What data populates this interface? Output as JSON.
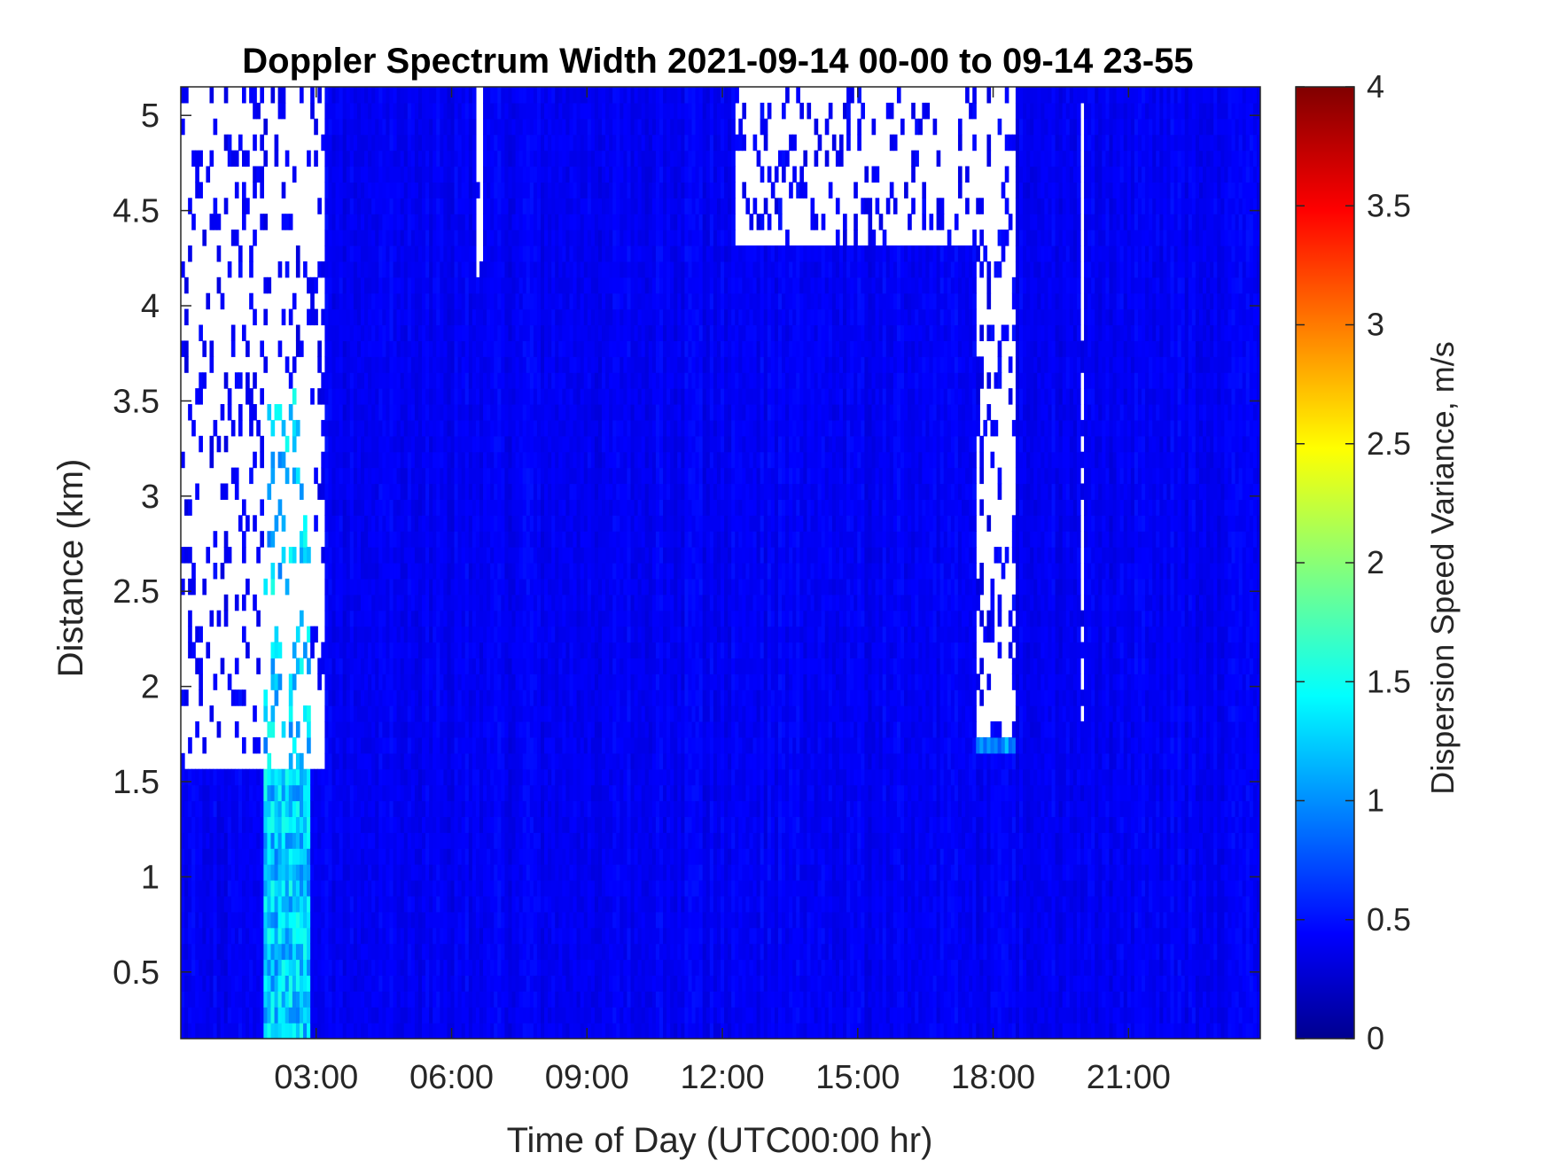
{
  "chart_data": {
    "type": "heatmap",
    "title": "Doppler Spectrum Width 2021-09-14 00-00 to 09-14 23-55",
    "xlabel": "Time of Day (UTC00:00 hr)",
    "ylabel": "Distance (km)",
    "xlim_hours": [
      0.0,
      23.92
    ],
    "ylim_km": [
      0.15,
      5.15
    ],
    "x_ticks": [
      {
        "hour": 3,
        "label": "03:00"
      },
      {
        "hour": 6,
        "label": "06:00"
      },
      {
        "hour": 9,
        "label": "09:00"
      },
      {
        "hour": 12,
        "label": "12:00"
      },
      {
        "hour": 15,
        "label": "15:00"
      },
      {
        "hour": 18,
        "label": "18:00"
      },
      {
        "hour": 21,
        "label": "21:00"
      }
    ],
    "y_ticks": [
      {
        "km": 0.5,
        "label": "0.5"
      },
      {
        "km": 1,
        "label": "1"
      },
      {
        "km": 1.5,
        "label": "1.5"
      },
      {
        "km": 2,
        "label": "2"
      },
      {
        "km": 2.5,
        "label": "2.5"
      },
      {
        "km": 3,
        "label": "3"
      },
      {
        "km": 3.5,
        "label": "3.5"
      },
      {
        "km": 4,
        "label": "4"
      },
      {
        "km": 4.5,
        "label": "4.5"
      },
      {
        "km": 5,
        "label": "5"
      }
    ],
    "colorbar": {
      "label": "Dispersion Speed Variance, m/s",
      "colormap": "jet",
      "range": [
        0,
        4
      ],
      "ticks": [
        {
          "value": 0,
          "label": "0"
        },
        {
          "value": 0.5,
          "label": "0.5"
        },
        {
          "value": 1,
          "label": "1"
        },
        {
          "value": 1.5,
          "label": "1.5"
        },
        {
          "value": 2,
          "label": "2"
        },
        {
          "value": 2.5,
          "label": "2.5"
        },
        {
          "value": 3,
          "label": "3"
        },
        {
          "value": 3.5,
          "label": "3.5"
        },
        {
          "value": 4,
          "label": "4"
        }
      ],
      "colormap_stops": [
        "#00008f",
        "#0000ff",
        "#00ffff",
        "#ffff00",
        "#ff0000",
        "#800000"
      ]
    },
    "background_value_m_s": 0.4,
    "regions": [
      {
        "name": "early elevated variance column",
        "hours": [
          1.8,
          2.9
        ],
        "km": [
          0.15,
          3.6
        ],
        "value_m_s": 1.3
      },
      {
        "name": "no-data cloud region early",
        "hours": [
          0.0,
          3.2
        ],
        "km": [
          1.6,
          5.15
        ],
        "value_m_s": null
      },
      {
        "name": "no-data gap near 06:30",
        "hours": [
          6.5,
          6.7
        ],
        "km": [
          4.15,
          5.15
        ],
        "value_m_s": null
      },
      {
        "name": "no-data region midday",
        "hours": [
          12.3,
          18.0
        ],
        "km": [
          4.3,
          5.15
        ],
        "value_m_s": null
      },
      {
        "name": "no-data column near 18:00",
        "hours": [
          17.6,
          18.5
        ],
        "km": [
          1.7,
          5.15
        ],
        "value_m_s": null
      },
      {
        "name": "elevated layer near 1.7 km",
        "hours": [
          17.6,
          18.5
        ],
        "km": [
          1.65,
          1.75
        ],
        "value_m_s": 1.1
      },
      {
        "name": "no-data gap near 20:00",
        "hours": [
          19.9,
          20.0
        ],
        "km": [
          1.7,
          5.15
        ],
        "value_m_s": null
      }
    ]
  }
}
